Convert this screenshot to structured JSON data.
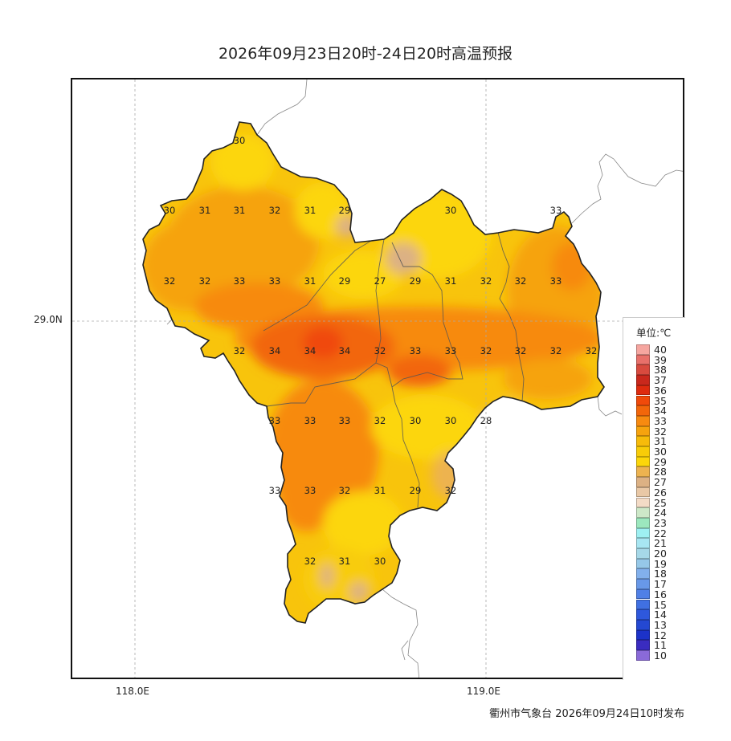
{
  "title": "2026年09月23日20时-24日20时高温预报",
  "footer": "衢州市气象台 2026年09月24日10时发布",
  "axes": {
    "x_ticks": [
      "118.0E",
      "119.0E"
    ],
    "y_ticks": [
      "29.0N"
    ]
  },
  "legend": {
    "title": "单位:℃",
    "entries": [
      {
        "label": "40",
        "color": "#f6a6a0"
      },
      {
        "label": "39",
        "color": "#e8706a"
      },
      {
        "label": "38",
        "color": "#d84a3e"
      },
      {
        "label": "37",
        "color": "#c9281c"
      },
      {
        "label": "36",
        "color": "#de2b0e"
      },
      {
        "label": "35",
        "color": "#f04a0a"
      },
      {
        "label": "34",
        "color": "#f2660a"
      },
      {
        "label": "33",
        "color": "#f78a10"
      },
      {
        "label": "32",
        "color": "#f6a30e"
      },
      {
        "label": "31",
        "color": "#f7bb0a"
      },
      {
        "label": "30",
        "color": "#f8cc08"
      },
      {
        "label": "29",
        "color": "#fcd60a"
      },
      {
        "label": "28",
        "color": "#edb350"
      },
      {
        "label": "27",
        "color": "#dcb184"
      },
      {
        "label": "26",
        "color": "#e9c8a6"
      },
      {
        "label": "25",
        "color": "#f3dbc6"
      },
      {
        "label": "24",
        "color": "#cde8c8"
      },
      {
        "label": "23",
        "color": "#9ce8be"
      },
      {
        "label": "22",
        "color": "#9ef0f2"
      },
      {
        "label": "21",
        "color": "#a8e6f2"
      },
      {
        "label": "20",
        "color": "#a6d8e8"
      },
      {
        "label": "19",
        "color": "#96c8e8"
      },
      {
        "label": "18",
        "color": "#82b0ec"
      },
      {
        "label": "17",
        "color": "#6898e8"
      },
      {
        "label": "16",
        "color": "#5080e6"
      },
      {
        "label": "15",
        "color": "#4070e2"
      },
      {
        "label": "14",
        "color": "#2e58dc"
      },
      {
        "label": "13",
        "color": "#2448d2"
      },
      {
        "label": "12",
        "color": "#1c32c8"
      },
      {
        "label": "11",
        "color": "#3a2cc0"
      },
      {
        "label": "10",
        "color": "#8a6ad8"
      }
    ]
  },
  "station_values": [
    [
      "30"
    ],
    [
      "30",
      "31",
      "31",
      "32",
      "31",
      "29",
      "30",
      "33"
    ],
    [
      "32",
      "32",
      "33",
      "33",
      "31",
      "29",
      "27",
      "29",
      "31",
      "32",
      "32",
      "33"
    ],
    [
      "32",
      "34",
      "34",
      "34",
      "32",
      "33",
      "33",
      "32",
      "32",
      "32",
      "32"
    ],
    [
      "33",
      "33",
      "33",
      "32",
      "30",
      "30",
      "28"
    ],
    [
      "33",
      "33",
      "32",
      "31",
      "29",
      "32"
    ],
    [
      "32",
      "31",
      "30"
    ]
  ],
  "colors": {
    "region_base": "#f8c40c",
    "outline": "#222222",
    "grid": "#aaaaaa"
  }
}
